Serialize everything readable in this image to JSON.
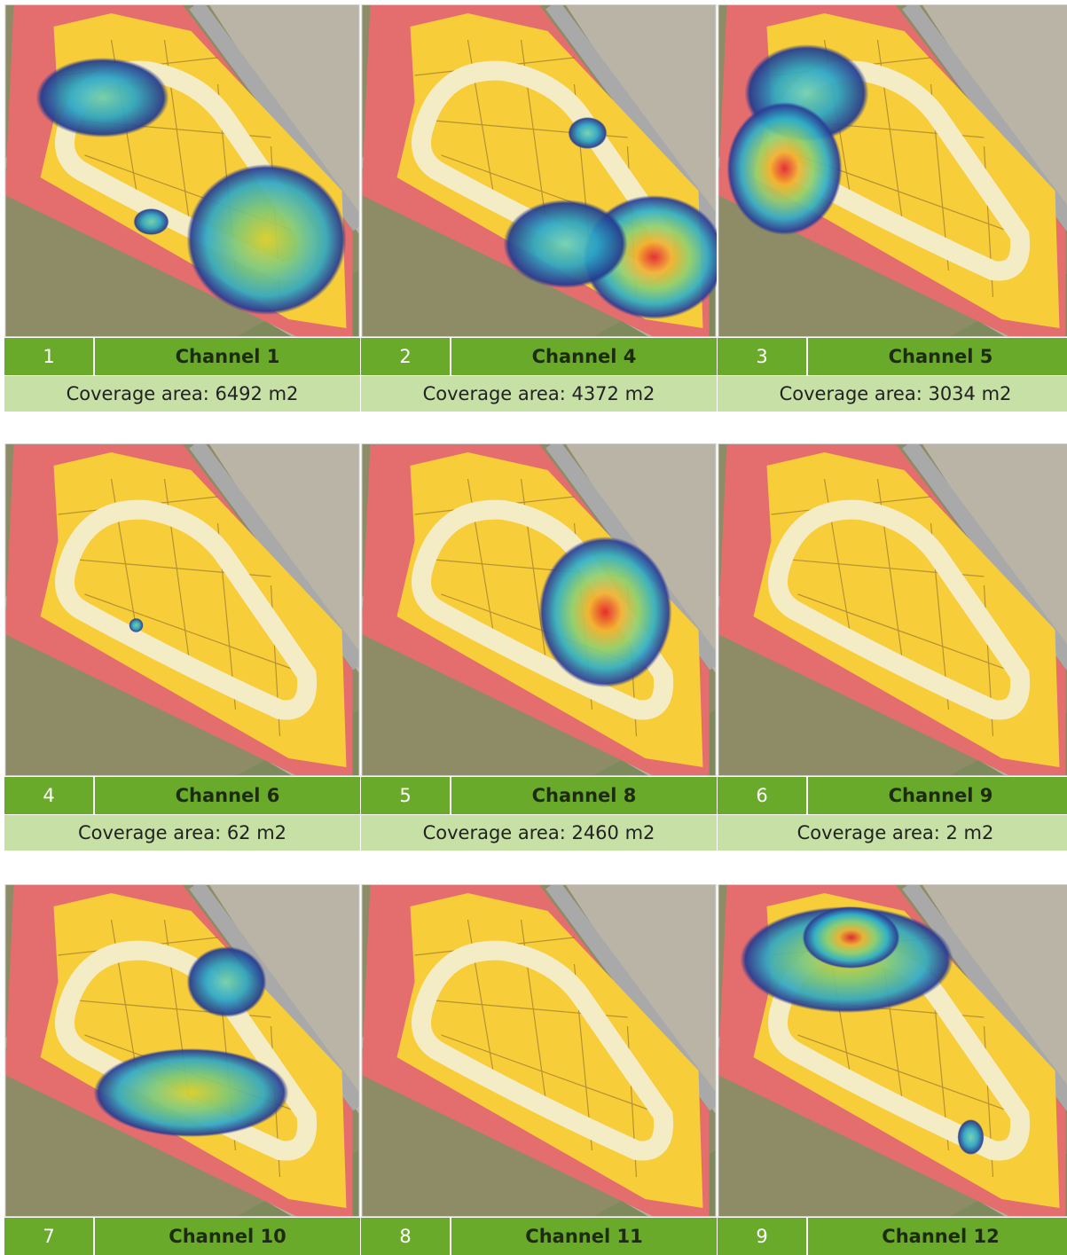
{
  "panels": [
    {
      "number": "1",
      "channel": "Channel 1",
      "coverage": "Coverage area: 6492 m2"
    },
    {
      "number": "2",
      "channel": "Channel 4",
      "coverage": "Coverage area: 4372 m2"
    },
    {
      "number": "3",
      "channel": "Channel 5",
      "coverage": "Coverage area: 3034 m2"
    },
    {
      "number": "4",
      "channel": "Channel 6",
      "coverage": "Coverage area: 62 m2"
    },
    {
      "number": "5",
      "channel": "Channel 8",
      "coverage": "Coverage area: 2460 m2"
    },
    {
      "number": "6",
      "channel": "Channel 9",
      "coverage": "Coverage area: 2 m2"
    },
    {
      "number": "7",
      "channel": "Channel 10"
    },
    {
      "number": "8",
      "channel": "Channel 11"
    },
    {
      "number": "9",
      "channel": "Channel 12"
    }
  ]
}
